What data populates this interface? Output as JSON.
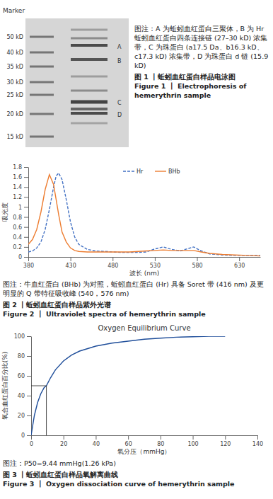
{
  "figure_1": {
    "gel": {
      "marker_title": "Marker",
      "marker_labels": [
        "50 kD",
        "40 kD",
        "35 kD",
        "30 kD",
        "25 kD",
        "20 kD",
        "15 kD"
      ],
      "band_labels": [
        "A",
        "B",
        "C",
        "D"
      ]
    },
    "note": "图注：A 为蚯蚓血红蛋白三聚体，B 为 Hr 蚯蚓血红蛋白四条连接链 (27–30 kD) 浓集带，C 为珠蛋白 (a17.5 Da、b16.3 kD、c17.3 kD) 浓集带，D 为珠蛋白 d 链 (15.9 kD)",
    "caption_zh": "图 1 丨蚯蚓血红蛋白样品电泳图",
    "caption_en": "Figure 1 丨 Electrophoresis of hemerythrin sample"
  },
  "chart_data": [
    {
      "type": "line",
      "x_label": "波长 (nm)",
      "y_label": "吸光度",
      "x": [
        380,
        385,
        390,
        395,
        400,
        405,
        410,
        413,
        416,
        420,
        425,
        430,
        435,
        440,
        450,
        460,
        470,
        480,
        490,
        500,
        510,
        520,
        530,
        540,
        550,
        560,
        570,
        576,
        585,
        595,
        610,
        625,
        640,
        655
      ],
      "series": [
        {
          "name": "Hr",
          "color": "#4472c4",
          "line_style": "dashed",
          "values": [
            0.1,
            0.12,
            0.18,
            0.3,
            0.55,
            0.95,
            1.4,
            1.62,
            1.68,
            1.55,
            1.15,
            0.7,
            0.4,
            0.25,
            0.15,
            0.12,
            0.11,
            0.1,
            0.09,
            0.09,
            0.09,
            0.1,
            0.16,
            0.2,
            0.15,
            0.12,
            0.17,
            0.2,
            0.12,
            0.06,
            0.04,
            0.03,
            0.03,
            0.03
          ]
        },
        {
          "name": "BHb",
          "color": "#ed7d31",
          "line_style": "solid",
          "values": [
            0.25,
            0.35,
            0.55,
            0.9,
            1.35,
            1.65,
            1.45,
            1.15,
            0.85,
            0.5,
            0.3,
            0.18,
            0.13,
            0.11,
            0.1,
            0.1,
            0.1,
            0.1,
            0.1,
            0.1,
            0.11,
            0.12,
            0.13,
            0.14,
            0.13,
            0.13,
            0.13,
            0.13,
            0.1,
            0.07,
            0.05,
            0.04,
            0.03,
            0.02
          ]
        }
      ],
      "xlim": [
        380,
        655
      ],
      "xticks": [
        380,
        430,
        480,
        530,
        580,
        630
      ],
      "ylim": [
        0,
        1.8
      ],
      "yticks": [
        0,
        0.2,
        0.4,
        0.6,
        0.8,
        1,
        1.2,
        1.4,
        1.6,
        1.8
      ],
      "grid": false,
      "legend": "top",
      "note": "图注：牛血红蛋白 (BHb) 为对照，蚯蚓血红蛋白 (Hr) 具备 Soret 带 (416 nm) 及更明显的 Q 带特征吸收峰 (540，576 nm)",
      "caption_zh": "图 2 丨蚯蚓血红蛋白样品紫外光谱",
      "caption_en": "Figure 2 丨 Ultraviolet spectra of hemerythrin sample"
    },
    {
      "type": "line",
      "title": "Oxygen Equilibrium Curve",
      "x_label": "氧分压（mmHg）",
      "y_label": "氧合血红蛋白百分比(%)",
      "x": [
        0,
        2,
        4,
        6,
        8,
        9.44,
        12,
        15,
        20,
        25,
        30,
        40,
        50,
        60,
        70,
        80,
        90,
        100,
        110,
        120
      ],
      "values": [
        0,
        20,
        33,
        42,
        48,
        50,
        58,
        66,
        75,
        81,
        85,
        90,
        93,
        95,
        97,
        98,
        99,
        99.5,
        100,
        100
      ],
      "color": "#1f4e9a",
      "p50": 9.44,
      "p50_percent": 50,
      "xlim": [
        0,
        140
      ],
      "xticks": [
        0,
        20,
        40,
        60,
        80,
        100,
        120,
        140
      ],
      "ylim": [
        0,
        100
      ],
      "yticks": [
        0,
        20,
        40,
        60,
        80,
        100
      ],
      "grid": false,
      "note": "图注：P50=9.44 mmHg(1.26 kPa)",
      "caption_zh": "图 3 丨蚯蚓血红蛋白样品氧解离曲线",
      "caption_en": "Figure 3 丨 Oxygen dissociation curve of hemerythrin sample"
    }
  ]
}
